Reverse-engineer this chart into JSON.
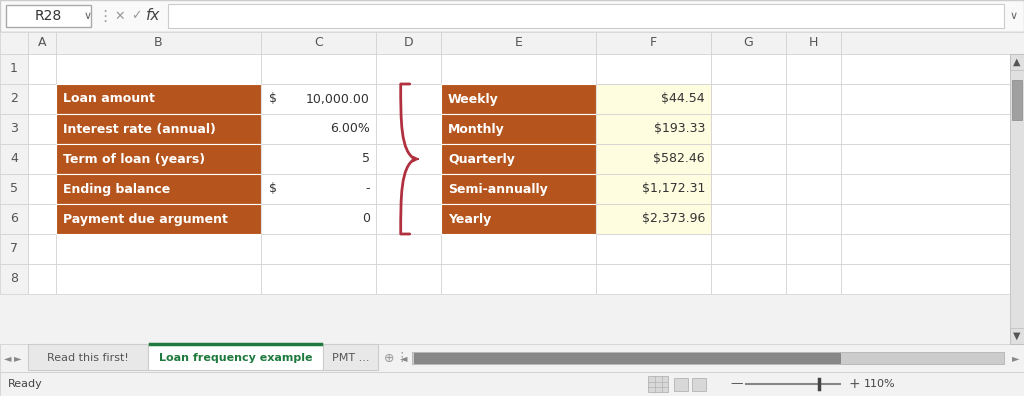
{
  "bg_color": "#f2f2f2",
  "brown_color": "#B5541C",
  "cream_color": "#FEFDE0",
  "left_labels": [
    "Loan amount",
    "Interest rate (annual)",
    "Term of loan (years)",
    "Ending balance",
    "Payment due argument"
  ],
  "left_values_right": [
    "10,000.00",
    "6.00%",
    "5",
    "-",
    "0"
  ],
  "left_has_dollar": [
    true,
    false,
    false,
    true,
    false
  ],
  "right_labels": [
    "Weekly",
    "Monthly",
    "Quarterly",
    "Semi-annually",
    "Yearly"
  ],
  "right_values": [
    "$44.54",
    "$193.33",
    "$582.46",
    "$1,172.31",
    "$2,373.96"
  ],
  "tab_active": "Loan frequency example",
  "tab_inactive1": "Read this first!",
  "tab_inactive2": "PMT ...",
  "cell_ref": "R28",
  "status_left": "Ready",
  "status_right": "110%",
  "brace_color": "#B03040",
  "col_header_bg": "#f2f2f2",
  "cell_bg": "#ffffff",
  "grid_color": "#d0d0d0",
  "row_header_bg": "#f2f2f2",
  "formula_bar_bg": "#f9f9f9",
  "tab_bar_bg": "#f2f2f2",
  "status_bar_bg": "#f2f2f2",
  "scroll_bg": "#e0e0e0",
  "scroll_thumb": "#a0a0a0",
  "tab_active_color": "#1e7a3e",
  "tab_active_bg": "#ffffff"
}
